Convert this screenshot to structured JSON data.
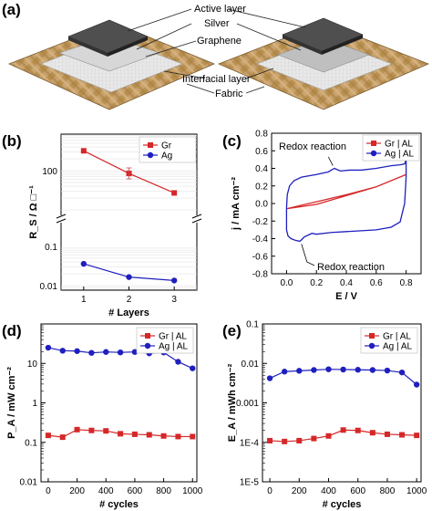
{
  "panels": {
    "a": {
      "label": "(a)",
      "layer_labels": [
        "Active layer",
        "Silver",
        "Graphene",
        "Interfacial layer",
        "Fabric"
      ],
      "colors": {
        "fabric": "#c8a06a",
        "fabric_dark": "#8a6a3c",
        "active": "#4a4a4a",
        "silver": "#bdbdbd",
        "graphene": "#d9d9d9"
      }
    }
  },
  "chart_data": [
    {
      "id": "b",
      "panel_label": "(b)",
      "type": "line",
      "xlabel": "# Layers",
      "ylabel": "R_S / Ω □⁻¹",
      "x": [
        1,
        2,
        3
      ],
      "xlim": [
        0.5,
        3.5
      ],
      "xticks": [
        "1",
        "2",
        "3"
      ],
      "axis_break": true,
      "upper_ylim": [
        10,
        300
      ],
      "lower_ylim": [
        0.01,
        0.05
      ],
      "ytick_labels_upper": [
        "100"
      ],
      "ytick_labels_lower": [
        "0.1",
        "0.01"
      ],
      "series": [
        {
          "name": "Gr",
          "color": "#d62728",
          "marker": "square",
          "values": [
            320,
            85,
            27
          ]
        },
        {
          "name": "Ag",
          "color": "#1f1fbf",
          "marker": "circle",
          "values": [
            0.036,
            0.0165,
            0.0135
          ]
        }
      ],
      "legend": "top-right"
    },
    {
      "id": "c",
      "panel_label": "(c)",
      "type": "line",
      "xlabel": "E / V",
      "ylabel": "j / mA cm⁻²",
      "xlim": [
        -0.1,
        0.9
      ],
      "ylim": [
        -0.8,
        0.8
      ],
      "xticks": [
        "0.0",
        "0.2",
        "0.4",
        "0.6",
        "0.8"
      ],
      "yticks": [
        "-0.8",
        "-0.6",
        "-0.4",
        "-0.2",
        "0.0",
        "0.2",
        "0.4",
        "0.6",
        "0.8"
      ],
      "series": [
        {
          "name": "Gr | AL",
          "color": "#d62728",
          "x": [
            0.0,
            0.2,
            0.4,
            0.6,
            0.8,
            0.6,
            0.4,
            0.2,
            0.0
          ],
          "y": [
            -0.06,
            0.02,
            0.1,
            0.19,
            0.33,
            0.19,
            0.09,
            -0.01,
            -0.06
          ]
        },
        {
          "name": "Ag | AL",
          "color": "#1f1fbf",
          "x": [
            0.0,
            0.005,
            0.02,
            0.05,
            0.1,
            0.2,
            0.28,
            0.32,
            0.36,
            0.42,
            0.5,
            0.6,
            0.7,
            0.76,
            0.79,
            0.8,
            0.8,
            0.79,
            0.76,
            0.7,
            0.6,
            0.5,
            0.4,
            0.3,
            0.2,
            0.17,
            0.12,
            0.09,
            0.06,
            0.03,
            0.01,
            0.0,
            0.0
          ],
          "y": [
            -0.05,
            0.1,
            0.2,
            0.26,
            0.3,
            0.33,
            0.36,
            0.4,
            0.37,
            0.38,
            0.38,
            0.4,
            0.43,
            0.44,
            0.45,
            0.5,
            0.3,
            0.0,
            -0.21,
            -0.27,
            -0.3,
            -0.31,
            -0.32,
            -0.33,
            -0.35,
            -0.34,
            -0.38,
            -0.43,
            -0.42,
            -0.4,
            -0.37,
            -0.3,
            -0.05
          ]
        }
      ],
      "annotations": [
        "Redox reaction",
        "Redox reaction"
      ],
      "legend": "top-right"
    },
    {
      "id": "d",
      "panel_label": "(d)",
      "type": "line",
      "xlabel": "# cycles",
      "ylabel": "P_A / mW cm⁻²",
      "log_y": true,
      "xlim": [
        -50,
        1030
      ],
      "ylim": [
        0.01,
        100
      ],
      "xticks": [
        "0",
        "200",
        "400",
        "600",
        "800",
        "1000"
      ],
      "yticks": [
        "0.01",
        "0.1",
        "1",
        "10"
      ],
      "x": [
        0,
        100,
        200,
        300,
        400,
        500,
        600,
        700,
        800,
        900,
        1000
      ],
      "series": [
        {
          "name": "Gr | AL",
          "color": "#d62728",
          "marker": "square",
          "values": [
            0.15,
            0.135,
            0.21,
            0.2,
            0.195,
            0.165,
            0.16,
            0.155,
            0.145,
            0.14,
            0.14
          ]
        },
        {
          "name": "Ag | AL",
          "color": "#1f1fbf",
          "marker": "circle",
          "values": [
            25,
            21,
            20.5,
            18.5,
            19.5,
            19,
            19.5,
            18,
            19,
            11,
            7.5
          ]
        }
      ],
      "legend": "top-right"
    },
    {
      "id": "e",
      "panel_label": "(e)",
      "type": "line",
      "xlabel": "# cycles",
      "ylabel": "E_A / mWh cm⁻²",
      "log_y": true,
      "xlim": [
        -50,
        1030
      ],
      "ylim": [
        1e-05,
        0.1
      ],
      "xticks": [
        "0",
        "200",
        "400",
        "600",
        "800",
        "1000"
      ],
      "yticks": [
        "1E-5",
        "1E-4",
        "0.001",
        "0.01",
        "0.1"
      ],
      "x": [
        0,
        100,
        200,
        300,
        400,
        500,
        600,
        700,
        800,
        900,
        1000
      ],
      "series": [
        {
          "name": "Gr | AL",
          "color": "#d62728",
          "marker": "square",
          "values": [
            0.00011,
            0.000105,
            0.00011,
            0.000125,
            0.000145,
            0.000205,
            0.0002,
            0.000175,
            0.00016,
            0.000155,
            0.00015
          ]
        },
        {
          "name": "Ag | AL",
          "color": "#1f1fbf",
          "marker": "circle",
          "values": [
            0.0042,
            0.0062,
            0.0065,
            0.0068,
            0.0071,
            0.007,
            0.0069,
            0.0068,
            0.0066,
            0.0059,
            0.0029
          ]
        }
      ],
      "legend": "top-right"
    }
  ]
}
